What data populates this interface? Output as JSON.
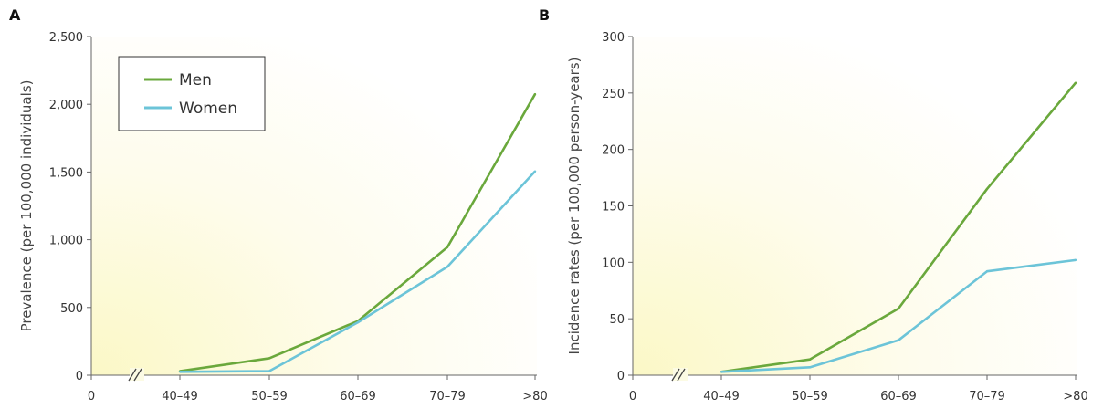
{
  "chart_data": [
    {
      "type": "line",
      "panel": "A",
      "ylabel": "Prevalence (per 100,000 individuals)",
      "x_zero_label": "0",
      "categories": [
        "40–49",
        "50–59",
        "60–69",
        "70–79",
        ">80"
      ],
      "ylim": [
        0,
        2500
      ],
      "yticks": [
        0,
        500,
        1000,
        1500,
        2000,
        2500
      ],
      "ytick_labels": [
        "0",
        "500",
        "1,000",
        "1,500",
        "2,000",
        "2,500"
      ],
      "axis_break": true,
      "legend": {
        "placement": "top-left",
        "entries": [
          "Men",
          "Women"
        ]
      },
      "series": [
        {
          "name": "Men",
          "color": "#6aa83c",
          "values": [
            30,
            125,
            400,
            945,
            2075
          ]
        },
        {
          "name": "Women",
          "color": "#6cc4d8",
          "values": [
            25,
            30,
            390,
            800,
            1505
          ]
        }
      ]
    },
    {
      "type": "line",
      "panel": "B",
      "ylabel": "Incidence rates (per 100,000 person-years)",
      "x_zero_label": "0",
      "categories": [
        "40–49",
        "50–59",
        "60–69",
        "70–79",
        ">80"
      ],
      "ylim": [
        0,
        300
      ],
      "yticks": [
        0,
        50,
        100,
        150,
        200,
        250,
        300
      ],
      "ytick_labels": [
        "0",
        "50",
        "100",
        "150",
        "200",
        "250",
        "300"
      ],
      "axis_break": true,
      "series": [
        {
          "name": "Men",
          "color": "#6aa83c",
          "values": [
            3,
            14,
            59,
            165,
            259
          ]
        },
        {
          "name": "Women",
          "color": "#6cc4d8",
          "values": [
            3,
            7,
            31,
            92,
            102
          ]
        }
      ]
    }
  ]
}
